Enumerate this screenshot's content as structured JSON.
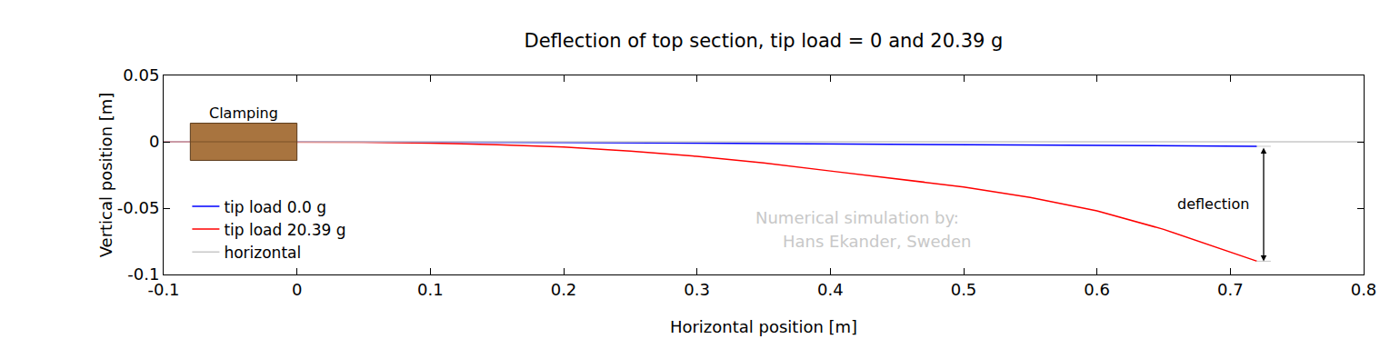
{
  "chart_data": {
    "type": "line",
    "title": "Deflection of top section, tip load = 0 and 20.39 g",
    "x_label": "Horizontal position [m]",
    "y_label": "Vertical position [m]",
    "xlim": [
      -0.1,
      0.8
    ],
    "xticks": [
      -0.1,
      0,
      0.1,
      0.2,
      0.3,
      0.4,
      0.5,
      0.6,
      0.7,
      0.8
    ],
    "ylim": [
      -0.1,
      0.05
    ],
    "yticks": [
      -0.1,
      -0.05,
      0,
      0.05
    ],
    "grid": false,
    "legend": "lower left",
    "series": [
      {
        "name": "tip load 0.0 g",
        "color": "#0000ff",
        "x": [
          -0.1,
          0,
          0.1,
          0.2,
          0.3,
          0.4,
          0.5,
          0.6,
          0.7,
          0.72
        ],
        "values": [
          0,
          0,
          -0.0002,
          -0.0005,
          -0.001,
          -0.0015,
          -0.002,
          -0.0026,
          -0.0032,
          -0.0034
        ]
      },
      {
        "name": "tip load 20.39 g",
        "color": "#ff0000",
        "x": [
          -0.1,
          0,
          0.05,
          0.1,
          0.15,
          0.2,
          0.25,
          0.3,
          0.35,
          0.4,
          0.45,
          0.5,
          0.55,
          0.6,
          0.65,
          0.7,
          0.72
        ],
        "values": [
          0,
          0,
          -0.0003,
          -0.001,
          -0.0022,
          -0.004,
          -0.007,
          -0.011,
          -0.016,
          -0.022,
          -0.028,
          -0.034,
          -0.042,
          -0.052,
          -0.066,
          -0.083,
          -0.09
        ]
      },
      {
        "name": "horizontal",
        "color": "#c8c8c8",
        "x": [
          -0.1,
          0.8
        ],
        "values": [
          0,
          0
        ]
      }
    ],
    "clamping": {
      "label": "Clamping",
      "x0": -0.08,
      "x1": 0,
      "y0": -0.014,
      "y1": 0.014
    },
    "deflection": {
      "label": "deflection",
      "x": 0.725,
      "y0": -0.0034,
      "y1": -0.09
    },
    "annotations": [
      {
        "text": "Numerical simulation by:",
        "x": 0.42,
        "y": -0.057
      },
      {
        "text": "Hans Ekander, Sweden",
        "x": 0.435,
        "y": -0.075
      }
    ]
  }
}
